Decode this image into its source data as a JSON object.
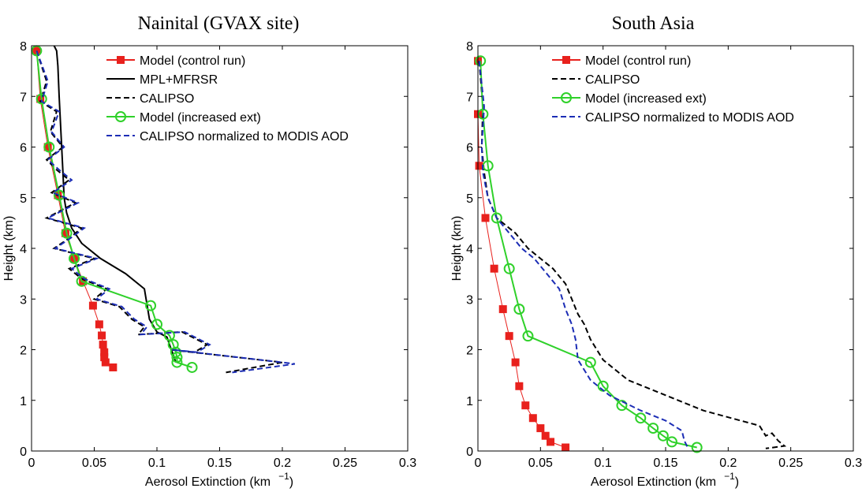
{
  "chart_data": [
    {
      "type": "line",
      "title": "Nainital (GVAX site)",
      "xlabel": "Aerosol Extinction (km",
      "xlabel_sup": "−1",
      "xlabel_close": ")",
      "ylabel": "Height (km)",
      "xlim": [
        0,
        0.3
      ],
      "ylim": [
        0,
        8
      ],
      "xticks": [
        "0",
        "0.05",
        "0.1",
        "0.15",
        "0.2",
        "0.25",
        "0.3"
      ],
      "yticks": [
        "0",
        "1",
        "2",
        "3",
        "4",
        "5",
        "6",
        "7",
        "8"
      ],
      "grid": false,
      "legend_position": "top-right",
      "series": [
        {
          "name": "Model (control run)",
          "color": "#e8211d",
          "style": "solid",
          "marker": "square",
          "x": [
            0.004,
            0.007,
            0.013,
            0.021,
            0.027,
            0.034,
            0.041,
            0.049,
            0.054,
            0.056,
            0.057,
            0.058,
            0.058,
            0.059,
            0.065
          ],
          "y": [
            7.9,
            6.95,
            6.0,
            5.05,
            4.3,
            3.8,
            3.35,
            2.87,
            2.5,
            2.28,
            2.1,
            1.95,
            1.85,
            1.75,
            1.65
          ]
        },
        {
          "name": "MPL+MFRSR",
          "color": "#000000",
          "style": "solid",
          "marker": "none",
          "x": [
            0.018,
            0.02,
            0.021,
            0.022,
            0.023,
            0.024,
            0.025,
            0.026,
            0.028,
            0.032,
            0.04,
            0.055,
            0.075,
            0.09,
            0.092,
            0.094,
            0.1,
            0.108,
            0.11,
            0.113,
            0.115
          ],
          "y": [
            8.0,
            7.9,
            7.6,
            7.0,
            6.5,
            6.0,
            5.5,
            5.0,
            4.7,
            4.4,
            4.1,
            3.8,
            3.5,
            3.2,
            2.9,
            2.6,
            2.35,
            2.25,
            2.1,
            1.9,
            1.75
          ]
        },
        {
          "name": "CALIPSO",
          "color": "#000000",
          "style": "dashed",
          "marker": "none",
          "x": [
            0.004,
            0.012,
            0.007,
            0.02,
            0.015,
            0.025,
            0.012,
            0.02,
            0.03,
            0.016,
            0.035,
            0.012,
            0.04,
            0.03,
            0.018,
            0.05,
            0.03,
            0.04,
            0.06,
            0.05,
            0.07,
            0.08,
            0.09,
            0.085,
            0.12,
            0.14,
            0.13,
            0.11,
            0.2,
            0.155
          ],
          "y": [
            7.9,
            7.3,
            6.9,
            6.7,
            6.3,
            6.0,
            5.75,
            5.55,
            5.35,
            5.1,
            4.9,
            4.6,
            4.4,
            4.2,
            4.0,
            3.8,
            3.6,
            3.4,
            3.2,
            3.0,
            2.85,
            2.6,
            2.45,
            2.3,
            2.35,
            2.1,
            1.95,
            2.0,
            1.75,
            1.55
          ]
        },
        {
          "name": "Model (increased ext)",
          "color": "#2fd12a",
          "style": "solid",
          "marker": "circle",
          "x": [
            0.004,
            0.008,
            0.014,
            0.022,
            0.028,
            0.034,
            0.04,
            0.095,
            0.1,
            0.11,
            0.113,
            0.115,
            0.116,
            0.116,
            0.128
          ],
          "y": [
            7.9,
            6.95,
            6.0,
            5.05,
            4.3,
            3.8,
            3.35,
            2.87,
            2.5,
            2.28,
            2.1,
            1.95,
            1.85,
            1.75,
            1.65
          ]
        },
        {
          "name": "CALIPSO normalized to MODIS AOD",
          "color": "#1c2db5",
          "style": "dashed",
          "marker": "none",
          "x": [
            0.004,
            0.013,
            0.008,
            0.022,
            0.016,
            0.026,
            0.013,
            0.022,
            0.032,
            0.017,
            0.037,
            0.013,
            0.042,
            0.031,
            0.019,
            0.052,
            0.032,
            0.042,
            0.062,
            0.052,
            0.072,
            0.082,
            0.092,
            0.087,
            0.122,
            0.142,
            0.132,
            0.112,
            0.21,
            0.16
          ],
          "y": [
            7.9,
            7.3,
            6.9,
            6.7,
            6.3,
            6.0,
            5.75,
            5.55,
            5.35,
            5.1,
            4.9,
            4.6,
            4.4,
            4.2,
            4.0,
            3.8,
            3.6,
            3.4,
            3.2,
            3.0,
            2.85,
            2.6,
            2.45,
            2.3,
            2.35,
            2.1,
            1.95,
            2.0,
            1.72,
            1.55
          ]
        }
      ]
    },
    {
      "type": "line",
      "title": "South Asia",
      "xlabel": "Aerosol Extinction (km",
      "xlabel_sup": "−1",
      "xlabel_close": ")",
      "ylabel": "Height (km)",
      "xlim": [
        0,
        0.3
      ],
      "ylim": [
        0,
        8
      ],
      "xticks": [
        "0",
        "0.05",
        "0.1",
        "0.15",
        "0.2",
        "0.25",
        "0.3"
      ],
      "yticks": [
        "0",
        "1",
        "2",
        "3",
        "4",
        "5",
        "6",
        "7",
        "8"
      ],
      "grid": false,
      "legend_position": "top-right",
      "series": [
        {
          "name": "Model (control run)",
          "color": "#e8211d",
          "style": "solid",
          "marker": "square",
          "x": [
            0.0,
            0.0,
            0.001,
            0.006,
            0.013,
            0.02,
            0.025,
            0.03,
            0.033,
            0.038,
            0.044,
            0.05,
            0.054,
            0.058,
            0.07
          ],
          "y": [
            7.7,
            6.65,
            5.63,
            4.6,
            3.6,
            2.8,
            2.27,
            1.75,
            1.28,
            0.9,
            0.65,
            0.45,
            0.3,
            0.18,
            0.07
          ]
        },
        {
          "name": "CALIPSO",
          "color": "#000000",
          "style": "dashed",
          "marker": "none",
          "x": [
            0.001,
            0.004,
            0.003,
            0.005,
            0.008,
            0.015,
            0.03,
            0.04,
            0.05,
            0.06,
            0.07,
            0.075,
            0.08,
            0.085,
            0.09,
            0.1,
            0.12,
            0.15,
            0.18,
            0.21,
            0.225,
            0.23,
            0.235,
            0.24,
            0.245,
            0.23
          ],
          "y": [
            7.7,
            6.8,
            6.0,
            5.5,
            5.0,
            4.6,
            4.3,
            4.0,
            3.8,
            3.6,
            3.3,
            3.0,
            2.7,
            2.5,
            2.2,
            1.8,
            1.4,
            1.1,
            0.8,
            0.6,
            0.5,
            0.3,
            0.35,
            0.2,
            0.1,
            0.05
          ]
        },
        {
          "name": "Model (increased ext)",
          "color": "#2fd12a",
          "style": "solid",
          "marker": "circle",
          "x": [
            0.002,
            0.004,
            0.008,
            0.015,
            0.025,
            0.033,
            0.04,
            0.09,
            0.1,
            0.115,
            0.13,
            0.14,
            0.148,
            0.155,
            0.175
          ],
          "y": [
            7.7,
            6.65,
            5.63,
            4.6,
            3.6,
            2.8,
            2.27,
            1.75,
            1.28,
            0.9,
            0.65,
            0.45,
            0.3,
            0.18,
            0.07
          ]
        },
        {
          "name": "CALIPSO normalized to MODIS AOD",
          "color": "#1c2db5",
          "style": "dashed",
          "marker": "none",
          "x": [
            0.001,
            0.005,
            0.003,
            0.004,
            0.008,
            0.015,
            0.025,
            0.035,
            0.045,
            0.055,
            0.065,
            0.07,
            0.075,
            0.078,
            0.08,
            0.09,
            0.105,
            0.13,
            0.15,
            0.163,
            0.165,
            0.168
          ],
          "y": [
            7.7,
            6.8,
            6.0,
            5.5,
            5.0,
            4.6,
            4.3,
            4.0,
            3.8,
            3.5,
            3.2,
            2.8,
            2.5,
            2.2,
            1.8,
            1.4,
            1.1,
            0.8,
            0.6,
            0.4,
            0.2,
            0.05
          ]
        }
      ]
    }
  ]
}
